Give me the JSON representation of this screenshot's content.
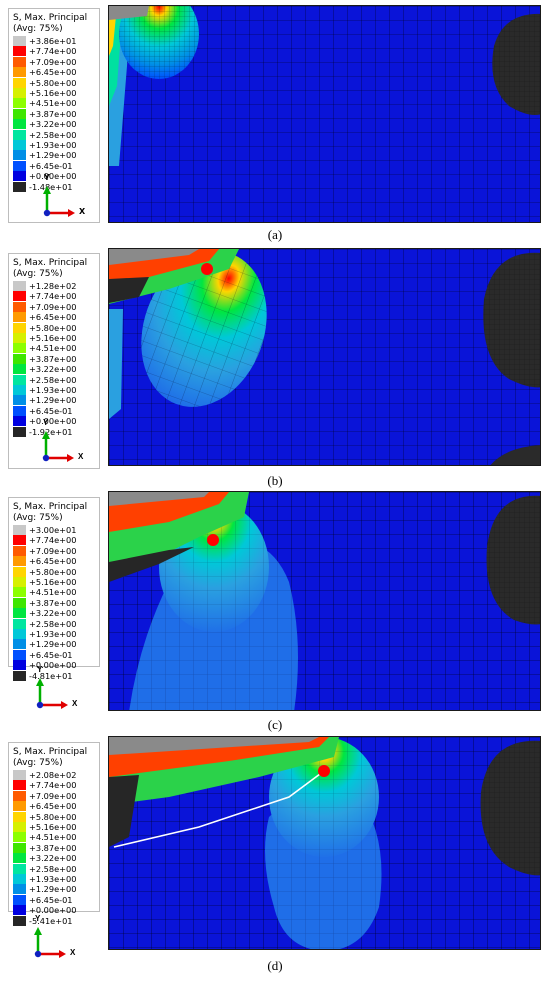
{
  "legend_palette": [
    "#c8c8c8",
    "#ff0000",
    "#ff5a00",
    "#ff9a00",
    "#ffd500",
    "#d6f000",
    "#8cff00",
    "#3ee600",
    "#00e640",
    "#00e6a0",
    "#00c8d8",
    "#008fe6",
    "#0050ff",
    "#0000e0",
    "#262626"
  ],
  "panels": [
    {
      "id": "a",
      "legend": {
        "title_line1": "S, Max. Principal",
        "title_line2": "(Avg: 75%)",
        "values": [
          "+3.86e+01",
          "+7.74e+00",
          "+7.09e+00",
          "+6.45e+00",
          "+5.80e+00",
          "+5.16e+00",
          "+4.51e+00",
          "+3.87e+00",
          "+3.22e+00",
          "+2.58e+00",
          "+1.93e+00",
          "+1.29e+00",
          "+6.45e-01",
          "+0.00e+00",
          "-1.48e+01"
        ]
      },
      "triad": {
        "y": "Y",
        "x": "X"
      },
      "caption": "(a)"
    },
    {
      "id": "b",
      "legend": {
        "title_line1": "S, Max. Principal",
        "title_line2": "(Avg: 75%)",
        "values": [
          "+1.28e+02",
          "+7.74e+00",
          "+7.09e+00",
          "+6.45e+00",
          "+5.80e+00",
          "+5.16e+00",
          "+4.51e+00",
          "+3.87e+00",
          "+3.22e+00",
          "+2.58e+00",
          "+1.93e+00",
          "+1.29e+00",
          "+6.45e-01",
          "+0.00e+00",
          "-1.92e+01"
        ]
      },
      "triad": {
        "y": "Y",
        "x": "X"
      },
      "caption": "(b)"
    },
    {
      "id": "c",
      "legend": {
        "title_line1": "S, Max. Principal",
        "title_line2": "(Avg: 75%)",
        "values": [
          "+3.00e+01",
          "+7.74e+00",
          "+7.09e+00",
          "+6.45e+00",
          "+5.80e+00",
          "+5.16e+00",
          "+4.51e+00",
          "+3.87e+00",
          "+3.22e+00",
          "+2.58e+00",
          "+1.93e+00",
          "+1.29e+00",
          "+6.45e-01",
          "+0.00e+00",
          "-4.81e+01"
        ]
      },
      "triad": {
        "y": "Y",
        "x": "X"
      },
      "caption": "(c)"
    },
    {
      "id": "d",
      "legend": {
        "title_line1": "S, Max. Principal",
        "title_line2": "(Avg: 75%)",
        "values": [
          "+2.08e+02",
          "+7.74e+00",
          "+7.09e+00",
          "+6.45e+00",
          "+5.80e+00",
          "+5.16e+00",
          "+4.51e+00",
          "+3.87e+00",
          "+3.22e+00",
          "+2.58e+00",
          "+1.93e+00",
          "+1.29e+00",
          "+6.45e-01",
          "+0.00e+00",
          "-5.41e+01"
        ]
      },
      "triad": {
        "y": "Y",
        "x": "X"
      },
      "caption": "(d)"
    }
  ]
}
